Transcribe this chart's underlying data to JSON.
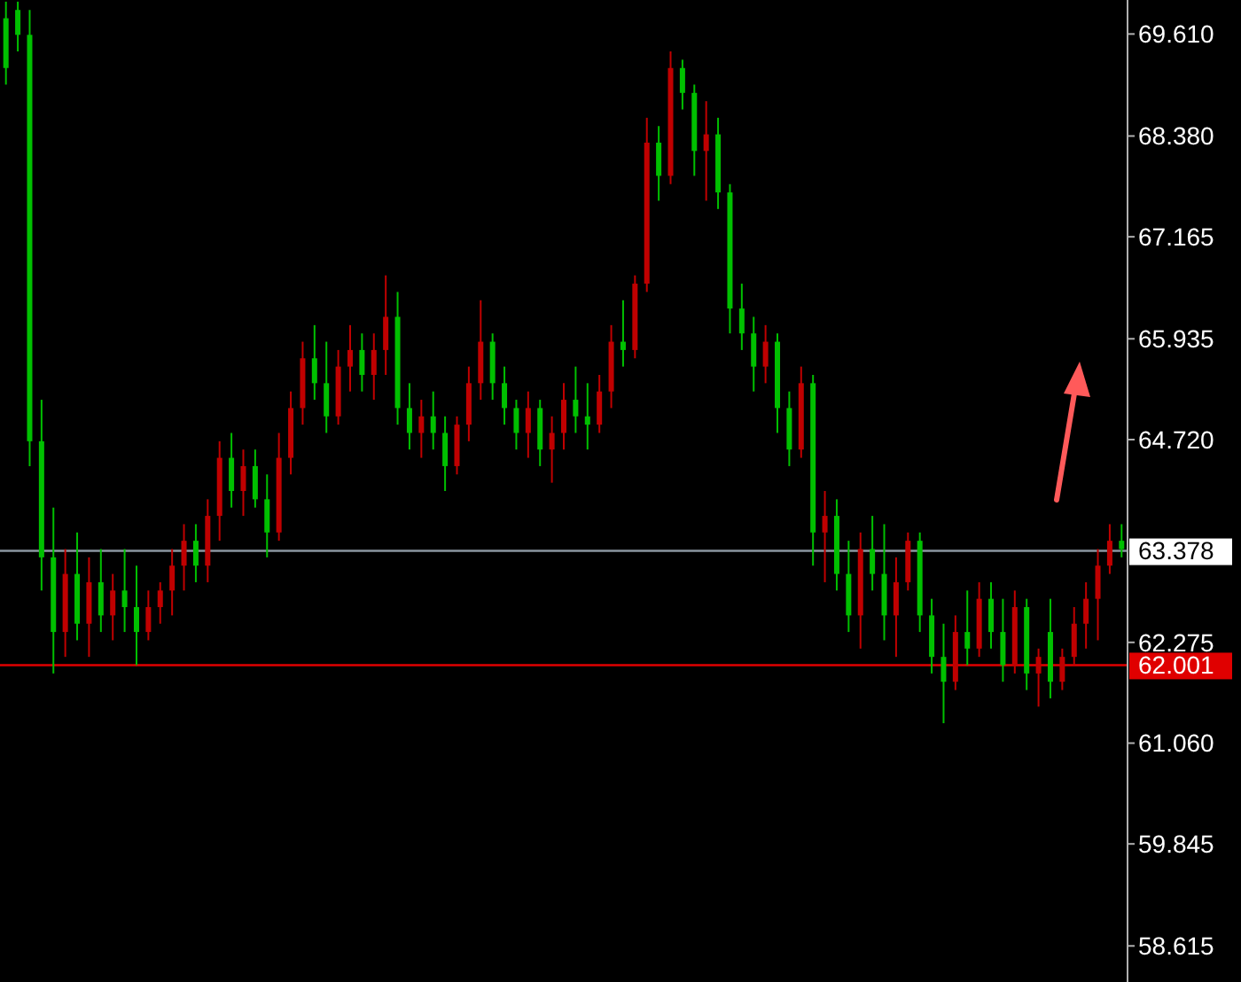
{
  "chart_data": {
    "type": "candlestick",
    "tick_labels": "y",
    "grid": false,
    "categories": [
      null,
      null,
      null,
      null,
      null,
      null,
      null,
      null,
      null,
      null,
      null,
      null,
      null,
      null,
      null,
      null,
      null,
      null,
      null,
      null,
      null,
      null,
      null,
      null,
      null,
      null,
      null,
      null,
      null,
      null,
      null,
      null,
      null,
      null,
      null,
      null,
      null,
      null,
      null,
      null,
      null,
      null,
      null,
      null,
      null,
      null,
      null,
      null,
      null,
      null,
      null,
      null,
      null,
      null,
      null,
      null,
      null,
      null,
      null,
      null,
      null,
      null,
      null,
      null,
      null,
      null,
      null,
      null,
      null,
      null,
      null,
      null,
      null,
      null,
      null,
      null,
      null,
      null,
      null,
      null,
      null,
      null,
      null,
      null,
      null,
      null,
      null,
      null,
      null,
      null,
      null,
      null,
      null,
      null,
      null
    ],
    "ylim": [
      58.18,
      70.02
    ],
    "yticks": [
      58.615,
      59.845,
      {
        "value": 61.06,
        "label": "61.060"
      },
      62.275,
      {
        "value": 64.72,
        "label": "64.720"
      },
      65.935,
      67.165,
      {
        "value": 68.38,
        "label": "68.380"
      },
      {
        "value": 69.61,
        "label": "69.610"
      }
    ],
    "ohlc": [
      [
        69.8,
        70.0,
        69.0,
        69.2
      ],
      [
        69.9,
        70.0,
        69.4,
        69.6
      ],
      [
        69.6,
        69.9,
        64.4,
        64.7
      ],
      [
        64.7,
        65.2,
        62.9,
        63.3
      ],
      [
        63.3,
        63.9,
        61.9,
        62.4
      ],
      [
        62.4,
        63.4,
        62.1,
        63.1
      ],
      [
        63.1,
        63.6,
        62.3,
        62.5
      ],
      [
        62.5,
        63.3,
        62.1,
        63.0
      ],
      [
        63.0,
        63.4,
        62.4,
        62.6
      ],
      [
        62.6,
        63.1,
        62.3,
        62.9
      ],
      [
        62.9,
        63.4,
        62.4,
        62.7
      ],
      [
        62.7,
        63.2,
        62.0,
        62.4
      ],
      [
        62.4,
        62.9,
        62.3,
        62.7
      ],
      [
        62.7,
        63.0,
        62.5,
        62.9
      ],
      [
        62.9,
        63.4,
        62.6,
        63.2
      ],
      [
        63.2,
        63.7,
        62.9,
        63.5
      ],
      [
        63.5,
        63.7,
        63.0,
        63.2
      ],
      [
        63.2,
        64.0,
        63.0,
        63.8
      ],
      [
        63.8,
        64.7,
        63.5,
        64.5
      ],
      [
        64.5,
        64.8,
        63.9,
        64.1
      ],
      [
        64.1,
        64.6,
        63.8,
        64.4
      ],
      [
        64.4,
        64.6,
        63.9,
        64.0
      ],
      [
        64.0,
        64.3,
        63.3,
        63.6
      ],
      [
        63.6,
        64.8,
        63.5,
        64.5
      ],
      [
        64.5,
        65.3,
        64.3,
        65.1
      ],
      [
        65.1,
        65.9,
        64.9,
        65.7
      ],
      [
        65.7,
        66.1,
        65.2,
        65.4
      ],
      [
        65.4,
        65.9,
        64.8,
        65.0
      ],
      [
        65.0,
        65.8,
        64.9,
        65.6
      ],
      [
        65.6,
        66.1,
        65.3,
        65.8
      ],
      [
        65.8,
        66.0,
        65.3,
        65.5
      ],
      [
        65.5,
        66.0,
        65.2,
        65.8
      ],
      [
        65.8,
        66.7,
        65.5,
        66.2
      ],
      [
        66.2,
        66.5,
        64.9,
        65.1
      ],
      [
        65.1,
        65.4,
        64.6,
        64.8
      ],
      [
        64.8,
        65.2,
        64.5,
        65.0
      ],
      [
        65.0,
        65.3,
        64.6,
        64.8
      ],
      [
        64.8,
        65.0,
        64.1,
        64.4
      ],
      [
        64.4,
        65.0,
        64.3,
        64.9
      ],
      [
        64.9,
        65.6,
        64.7,
        65.4
      ],
      [
        65.4,
        66.4,
        65.2,
        65.9
      ],
      [
        65.9,
        66.0,
        65.2,
        65.4
      ],
      [
        65.4,
        65.6,
        64.9,
        65.1
      ],
      [
        65.1,
        65.2,
        64.6,
        64.8
      ],
      [
        64.8,
        65.3,
        64.5,
        65.1
      ],
      [
        65.1,
        65.2,
        64.4,
        64.6
      ],
      [
        64.6,
        65.0,
        64.2,
        64.8
      ],
      [
        64.8,
        65.4,
        64.6,
        65.2
      ],
      [
        65.2,
        65.6,
        64.8,
        65.0
      ],
      [
        65.0,
        65.4,
        64.6,
        64.9
      ],
      [
        64.9,
        65.5,
        64.8,
        65.3
      ],
      [
        65.3,
        66.1,
        65.1,
        65.9
      ],
      [
        65.9,
        66.4,
        65.6,
        65.8
      ],
      [
        65.8,
        66.7,
        65.7,
        66.6
      ],
      [
        66.6,
        68.6,
        66.5,
        68.3
      ],
      [
        68.3,
        68.5,
        67.6,
        67.9
      ],
      [
        67.9,
        69.4,
        67.8,
        69.2
      ],
      [
        69.2,
        69.3,
        68.7,
        68.9
      ],
      [
        68.9,
        69.0,
        67.9,
        68.2
      ],
      [
        68.2,
        68.8,
        67.6,
        68.4
      ],
      [
        68.4,
        68.6,
        67.5,
        67.7
      ],
      [
        67.7,
        67.8,
        66.0,
        66.3
      ],
      [
        66.3,
        66.6,
        65.8,
        66.0
      ],
      [
        66.0,
        66.2,
        65.3,
        65.6
      ],
      [
        65.6,
        66.1,
        65.4,
        65.9
      ],
      [
        65.9,
        66.0,
        64.8,
        65.1
      ],
      [
        65.1,
        65.3,
        64.4,
        64.6
      ],
      [
        64.6,
        65.6,
        64.5,
        65.4
      ],
      [
        65.4,
        65.5,
        63.2,
        63.6
      ],
      [
        63.6,
        64.1,
        63.0,
        63.8
      ],
      [
        63.8,
        64.0,
        62.9,
        63.1
      ],
      [
        63.1,
        63.5,
        62.4,
        62.6
      ],
      [
        62.6,
        63.6,
        62.2,
        63.4
      ],
      [
        63.4,
        63.8,
        62.9,
        63.1
      ],
      [
        63.1,
        63.7,
        62.3,
        62.6
      ],
      [
        62.6,
        63.3,
        62.1,
        63.0
      ],
      [
        63.0,
        63.6,
        62.9,
        63.5
      ],
      [
        63.5,
        63.6,
        62.4,
        62.6
      ],
      [
        62.6,
        62.8,
        61.9,
        62.1
      ],
      [
        62.1,
        62.5,
        61.3,
        61.8
      ],
      [
        61.8,
        62.6,
        61.7,
        62.4
      ],
      [
        62.4,
        62.9,
        62.0,
        62.2
      ],
      [
        62.2,
        63.0,
        62.1,
        62.8
      ],
      [
        62.8,
        63.0,
        62.2,
        62.4
      ],
      [
        62.4,
        62.8,
        61.8,
        62.0
      ],
      [
        62.0,
        62.9,
        61.9,
        62.7
      ],
      [
        62.7,
        62.8,
        61.7,
        61.9
      ],
      [
        61.9,
        62.2,
        61.5,
        62.1
      ],
      [
        62.4,
        62.8,
        61.6,
        61.8
      ],
      [
        61.8,
        62.2,
        61.7,
        62.1
      ],
      [
        62.1,
        62.7,
        62.0,
        62.5
      ],
      [
        62.5,
        63.0,
        62.2,
        62.8
      ],
      [
        62.8,
        63.4,
        62.3,
        63.2
      ],
      [
        63.2,
        63.7,
        63.1,
        63.5
      ],
      [
        63.5,
        63.7,
        63.3,
        63.4
      ]
    ],
    "colors": [
      "#00c000",
      "#00c000",
      "#00c000",
      "#00c000",
      "#00c000",
      "#c00000",
      "#00c000",
      "#c00000",
      "#00c000",
      "#c00000",
      "#00c000",
      "#00c000",
      "#c00000",
      "#c00000",
      "#c00000",
      "#c00000",
      "#00c000",
      "#c00000",
      "#c00000",
      "#00c000",
      "#c00000",
      "#00c000",
      "#00c000",
      "#c00000",
      "#c00000",
      "#c00000",
      "#00c000",
      "#00c000",
      "#c00000",
      "#c00000",
      "#00c000",
      "#c00000",
      "#c00000",
      "#00c000",
      "#00c000",
      "#c00000",
      "#00c000",
      "#00c000",
      "#c00000",
      "#c00000",
      "#c00000",
      "#00c000",
      "#00c000",
      "#00c000",
      "#c00000",
      "#00c000",
      "#c00000",
      "#c00000",
      "#00c000",
      "#00c000",
      "#c00000",
      "#c00000",
      "#00c000",
      "#c00000",
      "#c00000",
      "#00c000",
      "#c00000",
      "#00c000",
      "#00c000",
      "#c00000",
      "#00c000",
      "#00c000",
      "#00c000",
      "#00c000",
      "#c00000",
      "#00c000",
      "#00c000",
      "#c00000",
      "#00c000",
      "#c00000",
      "#00c000",
      "#00c000",
      "#c00000",
      "#00c000",
      "#00c000",
      "#c00000",
      "#c00000",
      "#00c000",
      "#00c000",
      "#00c000",
      "#c00000",
      "#00c000",
      "#c00000",
      "#00c000",
      "#00c000",
      "#c00000",
      "#00c000",
      "#c00000",
      "#00c000",
      "#c00000",
      "#c00000",
      "#c00000",
      "#c00000",
      "#c00000",
      "#00c000"
    ],
    "ref_lines": [
      {
        "axis": "y",
        "value": 63.378,
        "label": "63.378",
        "color": "#8a96a0"
      },
      {
        "axis": "y",
        "value": 62.001,
        "label": "62.001",
        "color": "#e00000"
      }
    ]
  }
}
